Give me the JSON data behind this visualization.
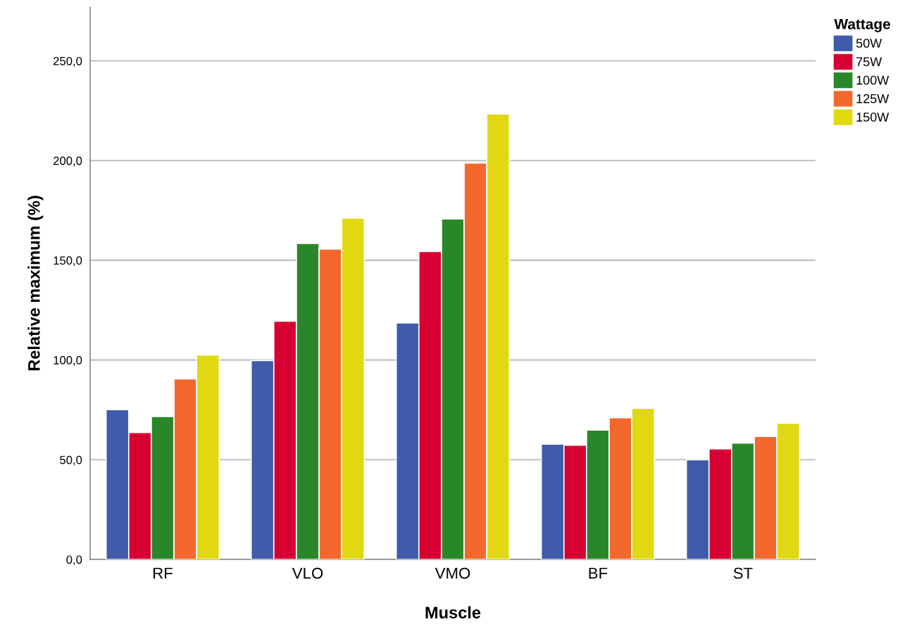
{
  "chart_data": {
    "type": "bar",
    "xlabel": "Muscle",
    "ylabel": "Relative maximum (%)",
    "legend_title": "Wattage",
    "categories": [
      "RF",
      "VLO",
      "VMO",
      "BF",
      "ST"
    ],
    "series": [
      {
        "name": "50W",
        "color": "#3f5ba9",
        "values": [
          75.1,
          99.7,
          118.6,
          57.8,
          50.0
        ]
      },
      {
        "name": "75W",
        "color": "#d70032",
        "values": [
          63.6,
          119.5,
          154.4,
          57.3,
          55.4
        ]
      },
      {
        "name": "100W",
        "color": "#2a8729",
        "values": [
          71.7,
          158.5,
          170.7,
          64.9,
          58.3
        ]
      },
      {
        "name": "125W",
        "color": "#f2682c",
        "values": [
          90.5,
          155.6,
          198.8,
          71.0,
          61.7
        ]
      },
      {
        "name": "150W",
        "color": "#e2d812",
        "values": [
          102.5,
          171.2,
          223.4,
          75.8,
          68.3
        ]
      }
    ],
    "ylim": [
      0,
      277
    ],
    "yticks": [
      {
        "value": 0,
        "label": "0,0"
      },
      {
        "value": 50,
        "label": "50,0"
      },
      {
        "value": 100,
        "label": "100,0"
      },
      {
        "value": 150,
        "label": "150,0"
      },
      {
        "value": 200,
        "label": "200,0"
      },
      {
        "value": 250,
        "label": "250,0"
      }
    ],
    "grid": "y",
    "legend": "top right"
  }
}
